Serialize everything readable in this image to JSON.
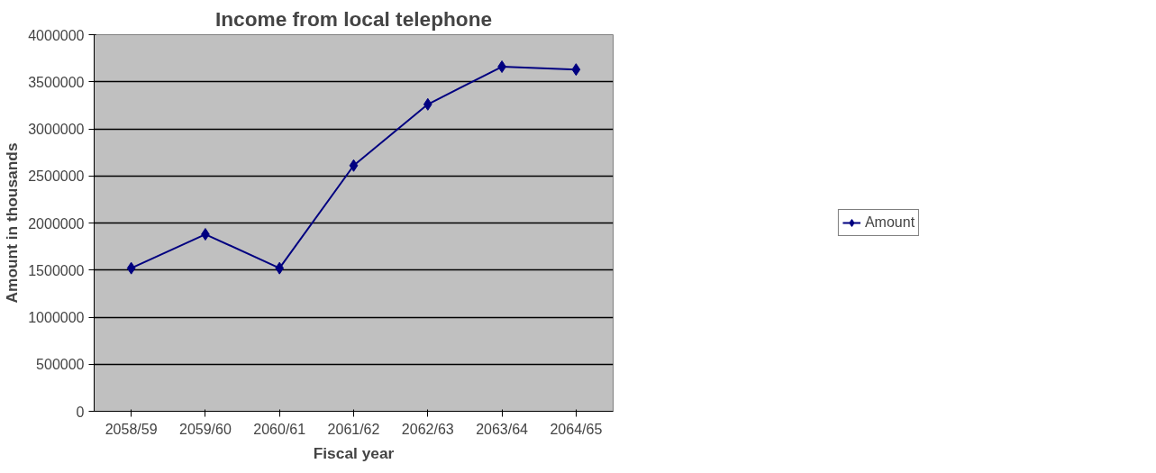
{
  "chart_data": {
    "type": "line",
    "title": "Income from local telephone",
    "xlabel": "Fiscal year",
    "ylabel": "Amount in thousands",
    "categories": [
      "2058/59",
      "2059/60",
      "2060/61",
      "2061/62",
      "2062/63",
      "2063/64",
      "2064/65"
    ],
    "series": [
      {
        "name": "Amount",
        "color": "#000080",
        "values": [
          1520000,
          1880000,
          1520000,
          2610000,
          3260000,
          3660000,
          3630000
        ]
      }
    ],
    "ylim": [
      0,
      4000000
    ],
    "yticks": [
      0,
      500000,
      1000000,
      1500000,
      2000000,
      2500000,
      3000000,
      3500000,
      4000000
    ],
    "grid": "y",
    "legend": "right",
    "marker": "diamond",
    "line_style": "solid"
  }
}
